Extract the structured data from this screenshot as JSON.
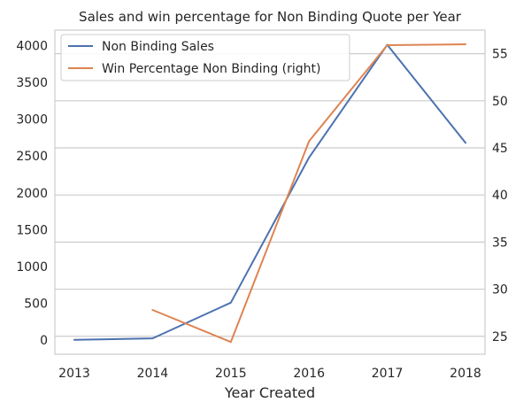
{
  "chart_data": {
    "type": "line",
    "title": "Sales and win percentage for Non Binding Quote per Year",
    "xlabel": "Year Created",
    "ylabel": "",
    "y2label": "",
    "categories": [
      "2013",
      "2014",
      "2015",
      "2016",
      "2017",
      "2018"
    ],
    "ylim": [
      -190,
      4210
    ],
    "y2lim": [
      23.1,
      57.5
    ],
    "yticks": [
      "0",
      "500",
      "1000",
      "1500",
      "2000",
      "2500",
      "3000",
      "3500",
      "4000"
    ],
    "y2ticks": [
      "25",
      "30",
      "35",
      "40",
      "45",
      "50",
      "55"
    ],
    "series": [
      {
        "name": "Non Binding Sales",
        "axis": "left",
        "color": "#4c72b0",
        "values": [
          5,
          25,
          510,
          2480,
          4010,
          2680
        ]
      },
      {
        "name": "Win Percentage Non Binding (right)",
        "axis": "right",
        "color": "#dd8452",
        "values": [
          null,
          27.8,
          24.4,
          45.7,
          55.9,
          56.0
        ]
      }
    ],
    "grid": true,
    "legend": "top-left"
  }
}
